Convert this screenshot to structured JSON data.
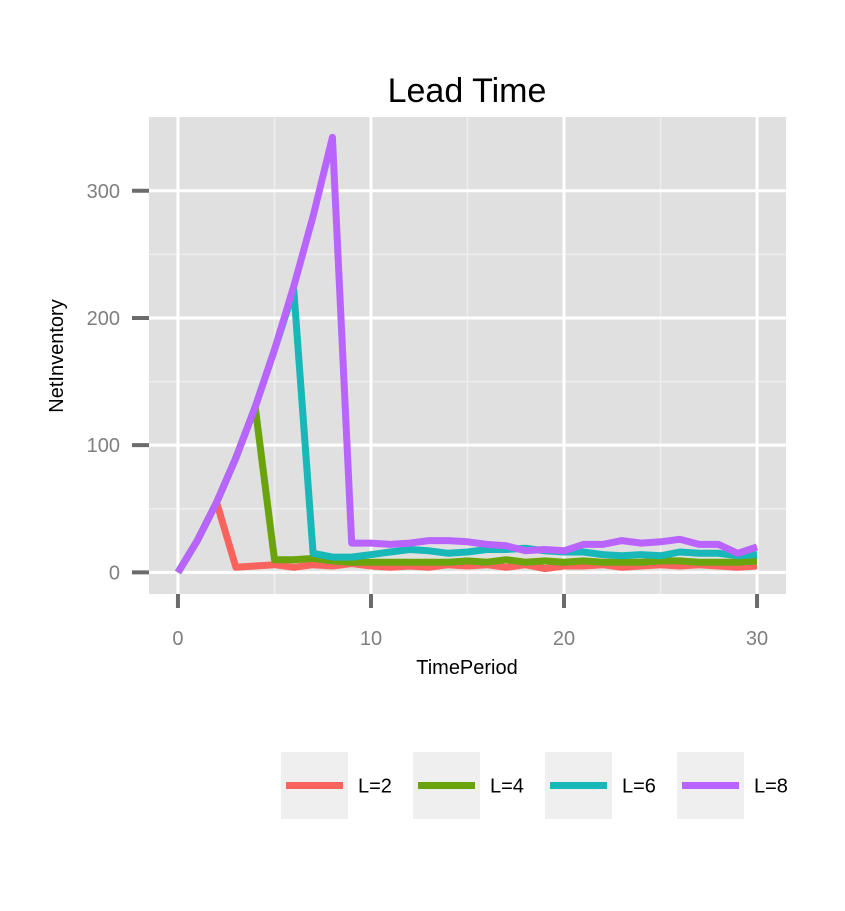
{
  "chart_data": {
    "type": "line",
    "title": "Lead Time",
    "xlabel": "TimePeriod",
    "ylabel": "NetInventory",
    "xlim": [
      -1.5,
      31.5
    ],
    "ylim": [
      -17,
      358
    ],
    "x_ticks": [
      0,
      10,
      20,
      30
    ],
    "y_ticks": [
      0,
      100,
      200,
      300
    ],
    "grid": true,
    "legend_position": "bottom",
    "colors": {
      "panel_background": "#e0e0e0",
      "grid_major": "#ffffff",
      "grid_minor": "#eeeeee",
      "legend_key_background": "#efefef"
    },
    "x": [
      0,
      1,
      2,
      3,
      4,
      5,
      6,
      7,
      8,
      9,
      10,
      11,
      12,
      13,
      14,
      15,
      16,
      17,
      18,
      19,
      20,
      21,
      22,
      23,
      24,
      25,
      26,
      27,
      28,
      29,
      30
    ],
    "series": [
      {
        "name": "L=2",
        "color": "#f8635d",
        "values": [
          0,
          25,
          55,
          4,
          5,
          6,
          4,
          6,
          5,
          7,
          5,
          4,
          5,
          4,
          6,
          5,
          6,
          4,
          6,
          3,
          5,
          5,
          6,
          4,
          5,
          6,
          5,
          6,
          5,
          4,
          5
        ]
      },
      {
        "name": "L=4",
        "color": "#6aa30b",
        "values": [
          0,
          25,
          55,
          90,
          130,
          10,
          10,
          11,
          9,
          8,
          8,
          8,
          8,
          8,
          8,
          9,
          8,
          10,
          8,
          9,
          8,
          9,
          8,
          8,
          8,
          9,
          9,
          8,
          8,
          8,
          9
        ]
      },
      {
        "name": "L=6",
        "color": "#18b8b8",
        "values": [
          0,
          25,
          55,
          90,
          130,
          175,
          222,
          15,
          12,
          12,
          14,
          16,
          18,
          17,
          15,
          16,
          18,
          18,
          19,
          17,
          16,
          16,
          14,
          13,
          14,
          13,
          16,
          15,
          15,
          13,
          14
        ]
      },
      {
        "name": "L=8",
        "color": "#b964fe",
        "values": [
          0,
          25,
          55,
          90,
          130,
          175,
          225,
          280,
          342,
          23,
          23,
          22,
          23,
          25,
          25,
          24,
          22,
          21,
          17,
          18,
          17,
          22,
          22,
          25,
          23,
          24,
          26,
          22,
          22,
          15,
          20
        ]
      }
    ]
  }
}
